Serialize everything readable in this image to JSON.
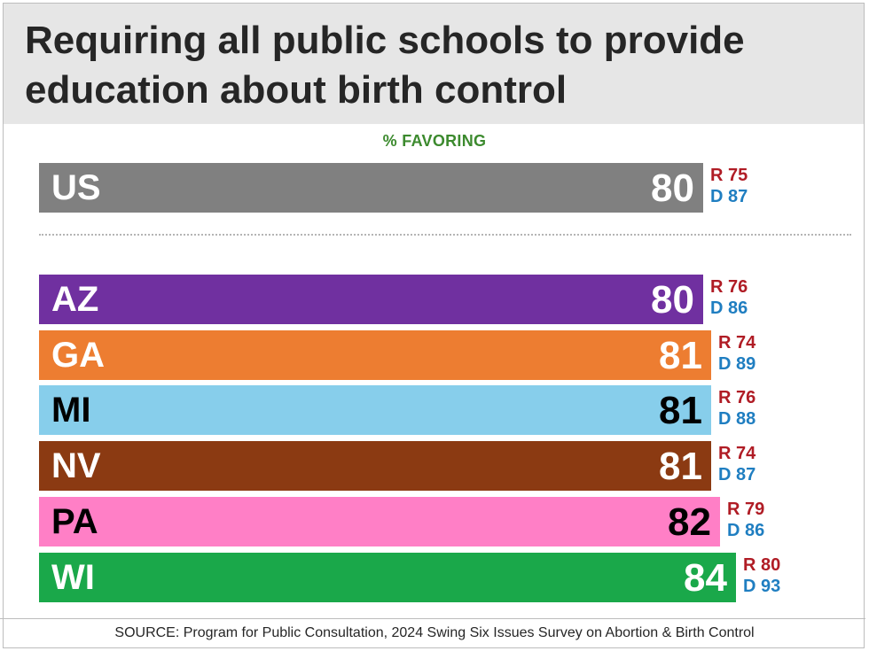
{
  "title": "Requiring all public schools to provide education about birth control",
  "subtitle": "% FAVORING",
  "source": "SOURCE: Program for Public Consultation, 2024 Swing Six Issues Survey on Abortion & Birth Control",
  "chart_data": {
    "type": "bar",
    "orientation": "horizontal",
    "title": "Requiring all public schools to provide education about birth control",
    "subtitle": "% FAVORING",
    "categories": [
      "US",
      "AZ",
      "GA",
      "MI",
      "NV",
      "PA",
      "WI"
    ],
    "values": [
      80,
      80,
      81,
      81,
      81,
      82,
      84
    ],
    "colors": [
      "#808080",
      "#7030a0",
      "#ed7d31",
      "#87ceeb",
      "#8b3a12",
      "#ff7fc6",
      "#1aa84a"
    ],
    "value_text_colors": [
      "#ffffff",
      "#ffffff",
      "#ffffff",
      "#000000",
      "#ffffff",
      "#000000",
      "#ffffff"
    ],
    "label_text_colors": [
      "#ffffff",
      "#ffffff",
      "#ffffff",
      "#000000",
      "#ffffff",
      "#000000",
      "#ffffff"
    ],
    "republican": [
      "R 75",
      "R 76",
      "R 74",
      "R 76",
      "R 74",
      "R 79",
      "R 80"
    ],
    "democrat": [
      "D 87",
      "D 86",
      "D 89",
      "D 88",
      "D 87",
      "D 86",
      "D 93"
    ],
    "grid": false
  }
}
